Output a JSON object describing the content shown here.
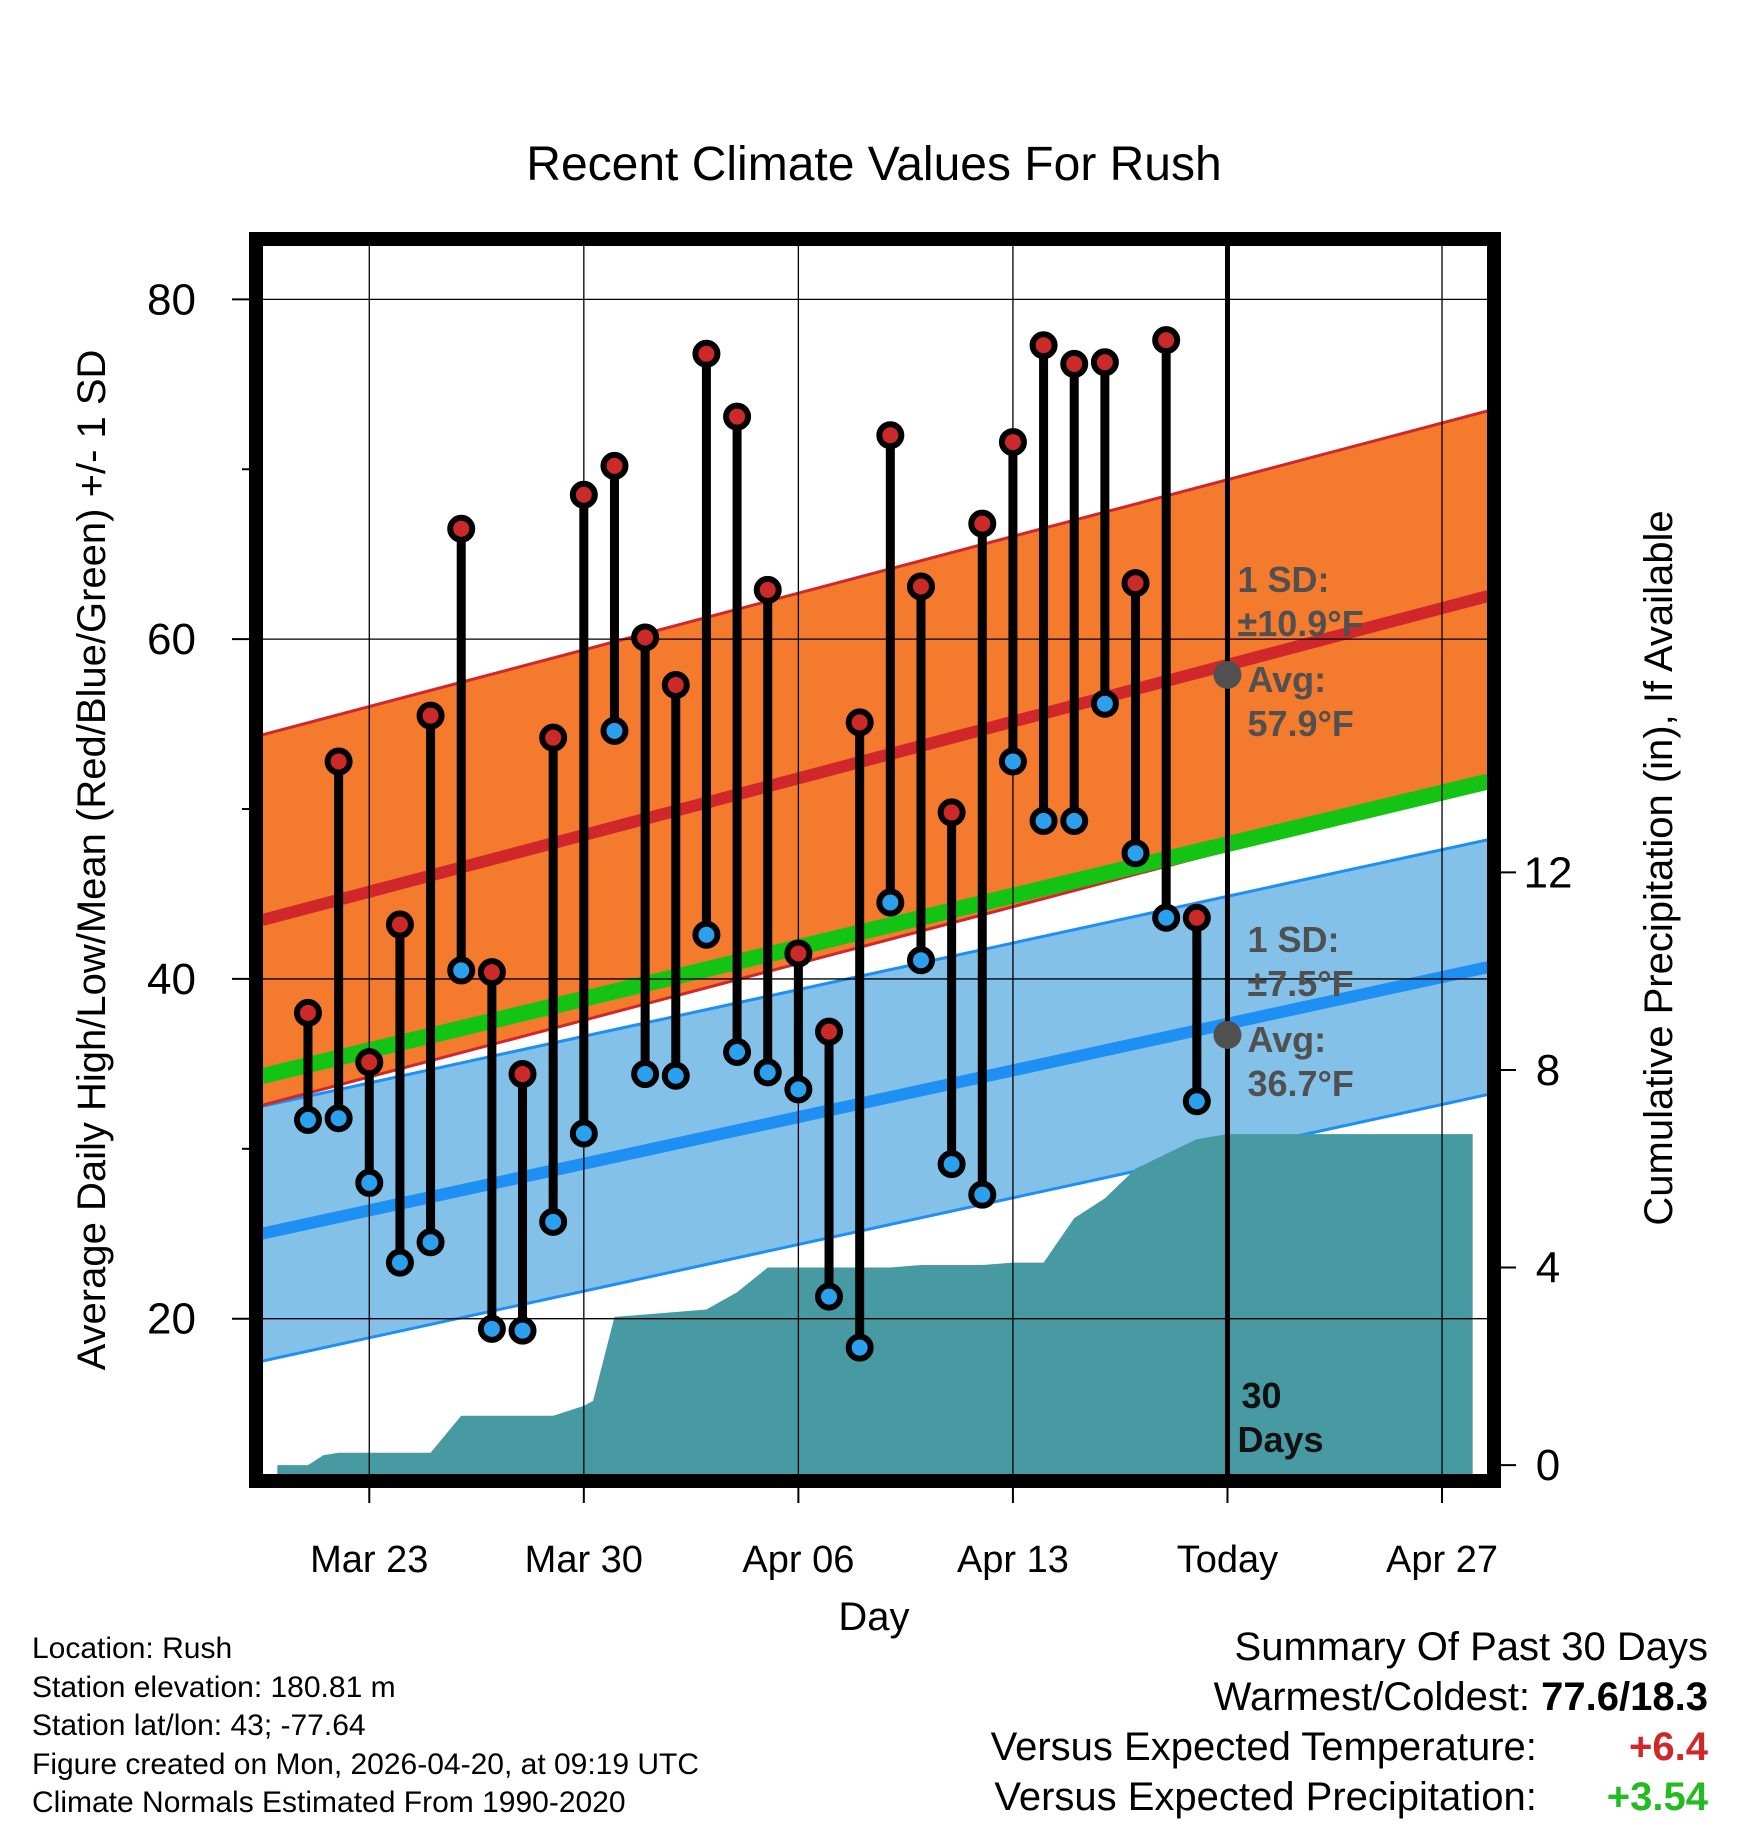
{
  "chart_data": {
    "type": "line",
    "title": "Recent Climate Values For Rush",
    "xlabel": "Day",
    "ylabel": "Average Daily High/Low/Mean (Red/Blue/Green) +/- 1 SD",
    "y2label": "Cumulative Precipitation (in), If Available",
    "x_tick_labels": [
      "Mar 23",
      "Mar 30",
      "Apr 06",
      "Apr 13",
      "Today",
      "Apr 27"
    ],
    "x_tick_days": [
      3,
      10,
      17,
      24,
      31,
      38
    ],
    "xlim": [
      -0.5,
      39.5
    ],
    "ylim": [
      10.8,
      83.2
    ],
    "y_ticks": [
      20,
      40,
      60,
      80
    ],
    "y2lim": [
      -0.2,
      24.7
    ],
    "y2_ticks": [
      0,
      4,
      8,
      12
    ],
    "today_day": 31,
    "today_label": "30 Days",
    "normal_high": {
      "day0": 43.7,
      "day39": 62.3,
      "sd": 10.9
    },
    "normal_low": {
      "day0": 25.2,
      "day39": 40.5,
      "sd": 7.5
    },
    "normal_mean": {
      "day0": 34.5,
      "day39": 51.4
    },
    "high_sd_label": "1 SD:",
    "high_sd_value": "±10.9°F",
    "high_avg_label": "Avg:",
    "high_avg_value": "57.9°F",
    "high_avg_today": 57.9,
    "low_sd_label": "1 SD:",
    "low_sd_value": "±7.5°F",
    "low_avg_label": "Avg:",
    "low_avg_value": "36.7°F",
    "low_avg_today": 36.7,
    "days": [
      1,
      2,
      3,
      4,
      5,
      6,
      7,
      8,
      9,
      10,
      11,
      12,
      13,
      14,
      15,
      16,
      17,
      18,
      19,
      20,
      21,
      22,
      23,
      24,
      25,
      26,
      27,
      28,
      29,
      30
    ],
    "highs": [
      38.0,
      52.8,
      35.1,
      43.2,
      55.5,
      66.5,
      40.4,
      34.4,
      54.2,
      68.5,
      70.2,
      60.1,
      57.3,
      76.8,
      73.1,
      62.9,
      41.5,
      36.9,
      55.1,
      72.0,
      63.1,
      49.8,
      66.8,
      71.6,
      77.3,
      76.2,
      76.3,
      63.3,
      77.6,
      43.6
    ],
    "lows": [
      31.7,
      31.8,
      28.0,
      23.3,
      24.5,
      40.5,
      19.4,
      19.3,
      25.7,
      30.9,
      54.6,
      34.4,
      34.3,
      42.6,
      35.7,
      34.5,
      33.5,
      21.3,
      18.3,
      44.5,
      41.1,
      29.1,
      27.3,
      52.8,
      49.3,
      49.3,
      56.2,
      47.4,
      43.6,
      32.8
    ],
    "precip_cumulative": {
      "days": [
        0,
        1,
        1.5,
        2,
        3,
        4,
        5,
        6,
        7,
        8,
        9,
        10,
        10.3,
        11,
        12,
        13,
        14,
        15,
        16,
        17,
        18,
        19,
        20,
        21,
        22,
        23,
        24,
        25,
        26,
        27,
        28,
        29,
        30,
        31,
        39
      ],
      "values": [
        0,
        0,
        0.2,
        0.25,
        0.25,
        0.25,
        0.25,
        1.0,
        1.0,
        1.0,
        1.0,
        1.2,
        1.3,
        3.0,
        3.05,
        3.1,
        3.15,
        3.5,
        4.0,
        4.0,
        4.0,
        4.0,
        4.0,
        4.05,
        4.05,
        4.05,
        4.1,
        4.1,
        5.0,
        5.4,
        6.0,
        6.3,
        6.6,
        6.7,
        6.7
      ]
    },
    "colors": {
      "high_band": "#f47a2e",
      "high_line": "#d0282a",
      "low_band": "#83c1e8",
      "low_line": "#1e8ff3",
      "mean_line": "#14c414",
      "precip": "#489aa2",
      "high_dot": "#cc2a28",
      "low_dot": "#2aa0ee",
      "annotation": "#505050"
    }
  },
  "info": {
    "location": "Location: Rush",
    "elevation": "Station elevation: 180.81 m",
    "latlon": "Station lat/lon: 43; -77.64",
    "created": "Figure created on Mon, 2026-04-20, at 09:19 UTC",
    "normals": "Climate Normals Estimated From 1990-2020"
  },
  "summary": {
    "title": "Summary Of Past 30 Days",
    "warm_cold_label": "Warmest/Coldest:",
    "warm_cold_value": "77.6/18.3",
    "temp_label": "Versus Expected Temperature:",
    "temp_value": "+6.4",
    "temp_color": "#d0282a",
    "precip_label": "Versus Expected Precipitation:",
    "precip_value": "+3.54",
    "precip_color": "#22bb22"
  }
}
